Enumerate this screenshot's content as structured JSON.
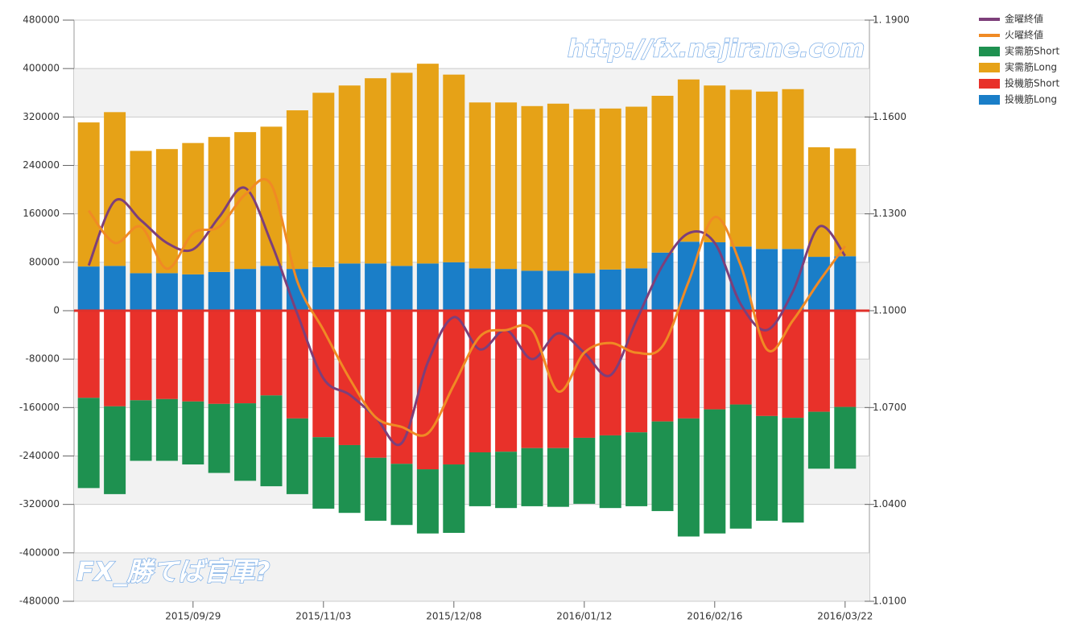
{
  "chart_data": {
    "type": "bar",
    "categories": [
      null,
      null,
      null,
      null,
      "2015/09/29",
      null,
      null,
      null,
      null,
      "2015/11/03",
      null,
      null,
      null,
      null,
      "2015/12/08",
      null,
      null,
      null,
      null,
      "2016/01/12",
      null,
      null,
      null,
      null,
      "2016/02/16",
      null,
      null,
      null,
      null,
      "2016/03/22"
    ],
    "series": [
      {
        "name": "金曜終値",
        "type": "line",
        "axis": "y2",
        "color": "#7d3f7a",
        "values": [
          1.114,
          1.134,
          1.128,
          1.121,
          1.119,
          1.129,
          1.138,
          1.121,
          1.099,
          1.079,
          1.074,
          1.067,
          1.059,
          1.084,
          1.098,
          1.088,
          1.094,
          1.085,
          1.093,
          1.087,
          1.08,
          1.097,
          1.114,
          1.124,
          1.121,
          1.102,
          1.094,
          1.106,
          1.126,
          1.117
        ]
      },
      {
        "name": "火曜終値",
        "type": "line",
        "axis": "y2",
        "color": "#f08a24",
        "values": [
          1.131,
          1.121,
          1.126,
          1.113,
          1.124,
          1.126,
          1.136,
          1.139,
          1.109,
          1.094,
          1.079,
          1.067,
          1.064,
          1.062,
          1.077,
          1.092,
          1.094,
          1.094,
          1.075,
          1.087,
          1.09,
          1.087,
          1.089,
          1.109,
          1.129,
          1.114,
          1.088,
          1.097,
          1.109,
          1.12
        ]
      },
      {
        "name": "実需筋Short",
        "color": "#1e9150",
        "values": [
          -149000,
          -145000,
          -100000,
          -102000,
          -104000,
          -114000,
          -128000,
          -150000,
          -125000,
          -118000,
          -112000,
          -104000,
          -101000,
          -106000,
          -113000,
          -89000,
          -93000,
          -96000,
          -97000,
          -109000,
          -120000,
          -122000,
          -148000,
          -195000,
          -205000,
          -205000,
          -173000,
          -173000,
          -94000,
          -102000
        ]
      },
      {
        "name": "実需筋Long",
        "color": "#e6a217",
        "values": [
          238000,
          254000,
          202000,
          205000,
          217000,
          223000,
          226000,
          230000,
          262000,
          288000,
          294000,
          306000,
          319000,
          330000,
          310000,
          274000,
          275000,
          272000,
          276000,
          271000,
          266000,
          267000,
          259000,
          268000,
          259000,
          259000,
          260000,
          264000,
          181000,
          178000
        ]
      },
      {
        "name": "投機筋Short",
        "color": "#e8312a",
        "values": [
          -144000,
          -158000,
          -148000,
          -146000,
          -150000,
          -154000,
          -153000,
          -140000,
          -178000,
          -209000,
          -222000,
          -243000,
          -253000,
          -262000,
          -254000,
          -234000,
          -233000,
          -227000,
          -227000,
          -210000,
          -206000,
          -201000,
          -183000,
          -178000,
          -163000,
          -155000,
          -174000,
          -177000,
          -167000,
          -159000
        ]
      },
      {
        "name": "投機筋Long",
        "color": "#1a7ec8",
        "values": [
          73000,
          74000,
          62000,
          62000,
          60000,
          64000,
          69000,
          74000,
          69000,
          72000,
          78000,
          78000,
          74000,
          78000,
          80000,
          70000,
          69000,
          66000,
          66000,
          62000,
          68000,
          70000,
          96000,
          114000,
          113000,
          106000,
          102000,
          102000,
          89000,
          90000
        ]
      }
    ],
    "ylim": [
      -480000,
      480000
    ],
    "yticks": [
      -480000,
      -400000,
      -320000,
      -240000,
      -160000,
      -80000,
      0,
      80000,
      160000,
      240000,
      320000,
      400000,
      480000
    ],
    "y2lim": [
      1.01,
      1.19
    ],
    "y2ticks": [
      {
        "value": 1.01,
        "label": "1.0100"
      },
      {
        "value": 1.04,
        "label": "1.0400"
      },
      {
        "value": 1.07,
        "label": "1.0700"
      },
      {
        "value": 1.1,
        "label": "1.1000"
      },
      {
        "value": 1.13,
        "label": "1.1300"
      },
      {
        "value": 1.16,
        "label": "1.1600"
      },
      {
        "value": 1.19,
        "label": "1. 1900"
      }
    ],
    "grid": true,
    "legend": "top-right",
    "watermarks": [
      "http://fx.najirane.com",
      "FX_勝てば官軍?"
    ]
  }
}
